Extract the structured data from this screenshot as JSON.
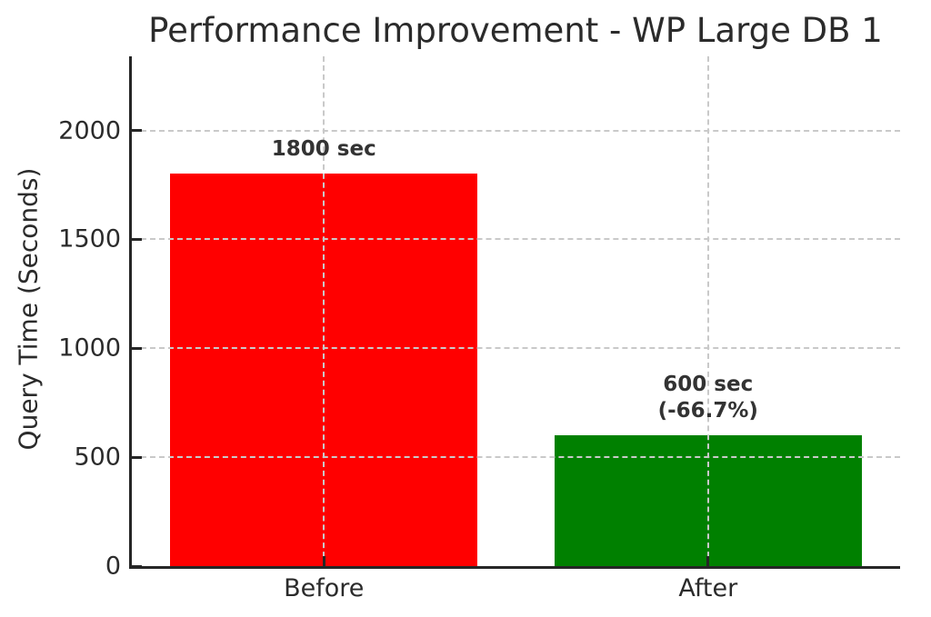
{
  "chart_data": {
    "type": "bar",
    "title": "Performance Improvement - WP Large DB 1",
    "xlabel": "",
    "ylabel": "Query Time (Seconds)",
    "categories": [
      "Before",
      "After"
    ],
    "values": [
      1800,
      600
    ],
    "bar_colors": [
      "#ff0000",
      "#008000"
    ],
    "bar_annotations": [
      [
        "1800 sec"
      ],
      [
        "600 sec",
        "(-66.7%)"
      ]
    ],
    "yticks": [
      0,
      500,
      1000,
      1500,
      2000
    ],
    "ylim": [
      0,
      2340
    ],
    "bar_width_fraction": 0.8,
    "grid": "dashed",
    "grid_color": "#c9c9c9",
    "axis_color": "#262626",
    "text_color": "#2b2b2b",
    "legend_position": "none",
    "background": "#ffffff"
  }
}
